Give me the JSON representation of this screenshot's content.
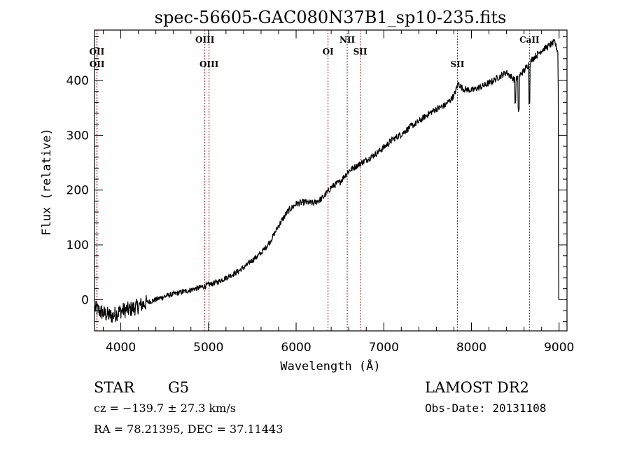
{
  "chart_data": {
    "type": "line",
    "title": "spec-56605-GAC080N37B1_sp10-235.fits",
    "xlabel": "Wavelength (Å)",
    "ylabel": "Flux (relative)",
    "xlim": [
      3700,
      9090
    ],
    "ylim": [
      -57,
      492
    ],
    "xticks": [
      4000,
      5000,
      6000,
      7000,
      8000,
      9000
    ],
    "xtick_labels": [
      "4000",
      "5000",
      "6000",
      "7000",
      "8000",
      "9000"
    ],
    "yticks": [
      0,
      100,
      200,
      300,
      400
    ],
    "ytick_labels": [
      "0",
      "100",
      "200",
      "300",
      "400"
    ],
    "grid": false,
    "colors": {
      "spectrum": "#000000",
      "line_marker": "#8b2020",
      "frame": "#000000"
    },
    "spectral_lines": [
      {
        "name": "OII",
        "wavelength": 3727,
        "label_row": 1
      },
      {
        "name": "OII",
        "wavelength": 3729,
        "label_row": 2
      },
      {
        "name": "OIII",
        "wavelength": 4959,
        "label_row": 0
      },
      {
        "name": "OIII",
        "wavelength": 5007,
        "label_row": 2
      },
      {
        "name": "OI",
        "wavelength": 6364,
        "label_row": 1
      },
      {
        "name": "NII",
        "wavelength": 6583,
        "label_row": 0
      },
      {
        "name": "SII",
        "wavelength": 6731,
        "label_row": 1
      },
      {
        "name": "SII",
        "wavelength": 7840,
        "label_row": 2
      },
      {
        "name": "CaII",
        "wavelength": 8662,
        "label_row": 0
      }
    ],
    "spectrum_anchors": {
      "wavelength": [
        3700,
        3800,
        3900,
        4000,
        4100,
        4200,
        4300,
        4400,
        4500,
        4600,
        4700,
        4800,
        4900,
        5000,
        5100,
        5200,
        5300,
        5400,
        5500,
        5600,
        5700,
        5800,
        5900,
        6000,
        6100,
        6200,
        6300,
        6400,
        6500,
        6600,
        6700,
        6800,
        6900,
        7000,
        7100,
        7200,
        7300,
        7400,
        7500,
        7600,
        7700,
        7800,
        7850,
        7900,
        8000,
        8100,
        8200,
        8300,
        8400,
        8500,
        8600,
        8700,
        8800,
        8900,
        8950,
        9000
      ],
      "flux": [
        -15,
        -25,
        -30,
        -20,
        -18,
        -12,
        -5,
        0,
        6,
        10,
        14,
        18,
        22,
        27,
        32,
        40,
        48,
        58,
        72,
        85,
        105,
        135,
        160,
        175,
        178,
        176,
        185,
        205,
        215,
        235,
        245,
        255,
        265,
        278,
        292,
        302,
        315,
        325,
        338,
        348,
        355,
        372,
        395,
        385,
        382,
        388,
        395,
        405,
        415,
        400,
        418,
        440,
        455,
        465,
        470,
        445
      ]
    }
  },
  "info": {
    "object_class": "STAR",
    "subclass": "G5",
    "redshift_line": "cz = −139.7 ± 27.3 km/s",
    "coords_line": "RA =  78.21395, DEC =  37.11443",
    "survey": "LAMOST DR2",
    "obs_date": "Obs-Date: 20131108"
  }
}
